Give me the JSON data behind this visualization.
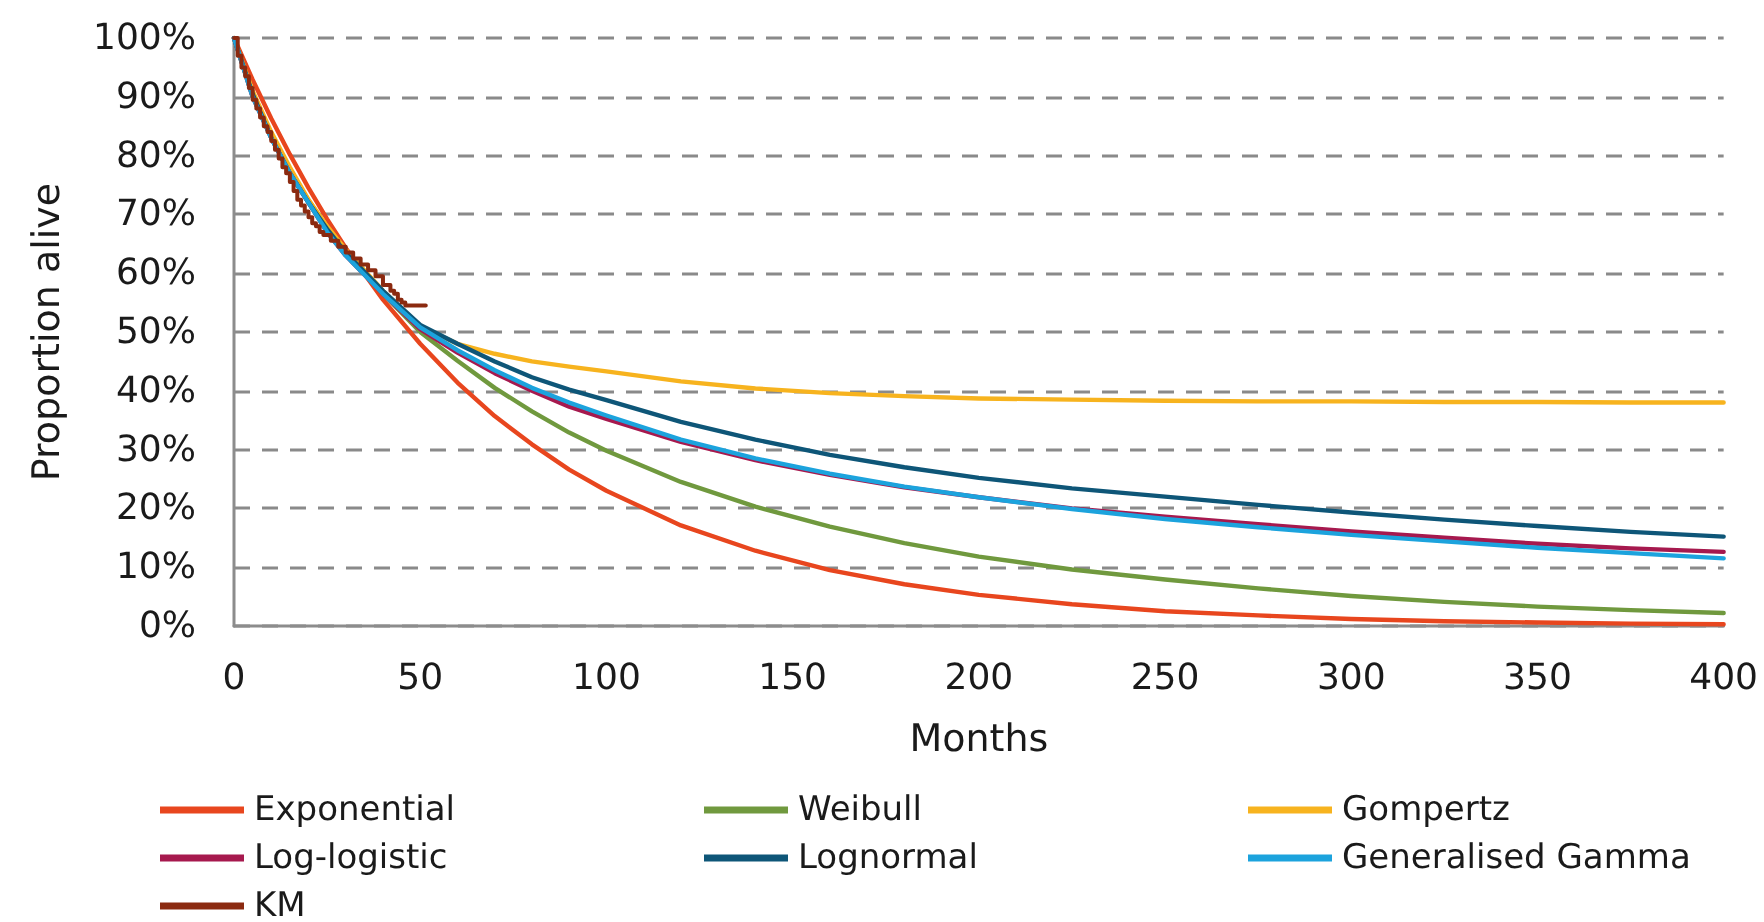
{
  "chart_data": {
    "type": "line",
    "xlabel": "Months",
    "ylabel": "Proportion alive",
    "x": [
      0,
      5,
      10,
      15,
      20,
      25,
      30,
      40,
      50,
      60,
      70,
      80,
      90,
      100,
      120,
      140,
      160,
      180,
      200,
      225,
      250,
      275,
      300,
      325,
      350,
      375,
      400
    ],
    "xlim": [
      0,
      400
    ],
    "xticks": [
      0,
      50,
      100,
      150,
      200,
      250,
      300,
      350,
      400
    ],
    "ylim": [
      0,
      100
    ],
    "yticks": [
      {
        "value": 0,
        "label": "0%"
      },
      {
        "value": 10,
        "label": "10%"
      },
      {
        "value": 20,
        "label": "20%"
      },
      {
        "value": 30,
        "label": "30%"
      },
      {
        "value": 40,
        "label": "40%"
      },
      {
        "value": 50,
        "label": "50%"
      },
      {
        "value": 60,
        "label": "60%"
      },
      {
        "value": 70,
        "label": "70%"
      },
      {
        "value": 80,
        "label": "80%"
      },
      {
        "value": 90,
        "label": "90%"
      },
      {
        "value": 100,
        "label": "100%"
      }
    ],
    "grid": "y",
    "legend": "bottom",
    "marker": "none",
    "line_style": "solid",
    "series": [
      {
        "name": "Exponential",
        "color": "#e8461e",
        "values": [
          100,
          92.9,
          86.3,
          80.2,
          74.5,
          69.2,
          64.3,
          55.5,
          48.0,
          41.4,
          35.7,
          30.9,
          26.6,
          23.0,
          17.1,
          12.8,
          9.5,
          7.1,
          5.3,
          3.7,
          2.5,
          1.8,
          1.2,
          0.8,
          0.6,
          0.4,
          0.3
        ]
      },
      {
        "name": "Weibull",
        "color": "#70993e",
        "values": [
          100,
          90.1,
          83.3,
          77.4,
          72.4,
          67.8,
          63.7,
          56.5,
          50.0,
          45.1,
          40.5,
          36.5,
          32.9,
          29.8,
          24.5,
          20.3,
          16.9,
          14.1,
          11.8,
          9.6,
          7.9,
          6.4,
          5.1,
          4.1,
          3.3,
          2.7,
          2.2
        ]
      },
      {
        "name": "Gompertz",
        "color": "#f7b31e",
        "values": [
          100,
          91,
          84,
          78,
          72.5,
          68,
          64,
          57,
          51,
          48,
          46.3,
          45,
          44.1,
          43.3,
          41.6,
          40.4,
          39.6,
          39.1,
          38.7,
          38.5,
          38.3,
          38.2,
          38.2,
          38.1,
          38.1,
          38.0,
          38.0
        ]
      },
      {
        "name": "Log-logistic",
        "color": "#a6194e",
        "values": [
          100,
          90,
          83,
          77,
          72,
          67,
          63,
          56.5,
          50.5,
          46.5,
          43,
          40,
          37.3,
          35.2,
          31.3,
          28.2,
          25.7,
          23.6,
          21.9,
          20.0,
          18.6,
          17.3,
          16.1,
          15.0,
          14.0,
          13.2,
          12.6
        ]
      },
      {
        "name": "Lognormal",
        "color": "#0e5678",
        "values": [
          100,
          90.5,
          83,
          77,
          72,
          67.5,
          63.5,
          57,
          51.2,
          48,
          45,
          42.3,
          40.2,
          38.4,
          34.7,
          31.7,
          29.1,
          27,
          25.2,
          23.4,
          22,
          20.6,
          19.3,
          18.1,
          17,
          16,
          15.2
        ]
      },
      {
        "name": "Generalised Gamma",
        "color": "#1ca3dd",
        "values": [
          100,
          90,
          83,
          77,
          72,
          67,
          63,
          56.5,
          50.8,
          46.9,
          43.5,
          40.5,
          38.0,
          35.8,
          31.7,
          28.5,
          25.9,
          23.7,
          21.9,
          19.9,
          18.2,
          16.8,
          15.5,
          14.4,
          13.3,
          12.4,
          11.5
        ]
      },
      {
        "name": "KM",
        "type": "step",
        "color": "#8b2a10",
        "x": [
          0,
          1,
          2,
          3,
          4,
          5,
          6,
          7,
          8,
          9,
          10,
          11,
          12,
          13,
          14,
          15,
          16,
          17,
          18,
          19,
          20,
          21,
          22,
          23,
          24,
          26,
          28,
          30,
          32,
          34,
          36,
          38,
          40,
          42,
          43,
          44,
          45,
          46,
          51.5
        ],
        "values": [
          100,
          97,
          95,
          93.5,
          91.5,
          89.5,
          88,
          86.5,
          85,
          84,
          82.5,
          81,
          79.5,
          78,
          77,
          75.5,
          74,
          72.5,
          71.5,
          70.5,
          69.5,
          68.5,
          68,
          67,
          66.5,
          65.5,
          64.5,
          63.5,
          62.5,
          61.5,
          60.5,
          59.5,
          58,
          57,
          56.5,
          55.5,
          55,
          54.5,
          54.5
        ]
      }
    ]
  }
}
